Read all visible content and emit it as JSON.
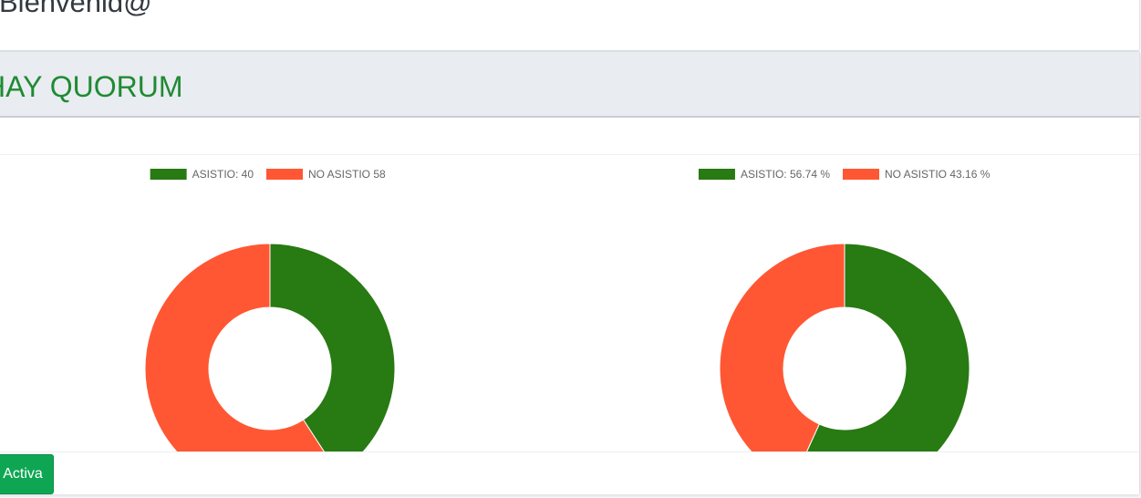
{
  "header": {
    "welcome": "Bienvenid@"
  },
  "quorum": {
    "title": "HAY QUORUM"
  },
  "footer": {
    "button_label": "Activa"
  },
  "colors": {
    "asistio": "#287a12",
    "no_asistio": "#ff5733",
    "title_green": "#1f8a32",
    "button_green": "#0fa653"
  },
  "chart_data": [
    {
      "type": "pie",
      "donut": true,
      "legend_position": "top",
      "labels": [
        "ASISTIO: 40",
        "NO ASISTIO 58"
      ],
      "values": [
        40,
        58
      ],
      "colors": [
        "#287a12",
        "#ff5733"
      ]
    },
    {
      "type": "pie",
      "donut": true,
      "legend_position": "top",
      "labels": [
        "ASISTIO: 56.74 %",
        "NO ASISTIO 43.16 %"
      ],
      "values": [
        56.74,
        43.16
      ],
      "colors": [
        "#287a12",
        "#ff5733"
      ]
    }
  ]
}
